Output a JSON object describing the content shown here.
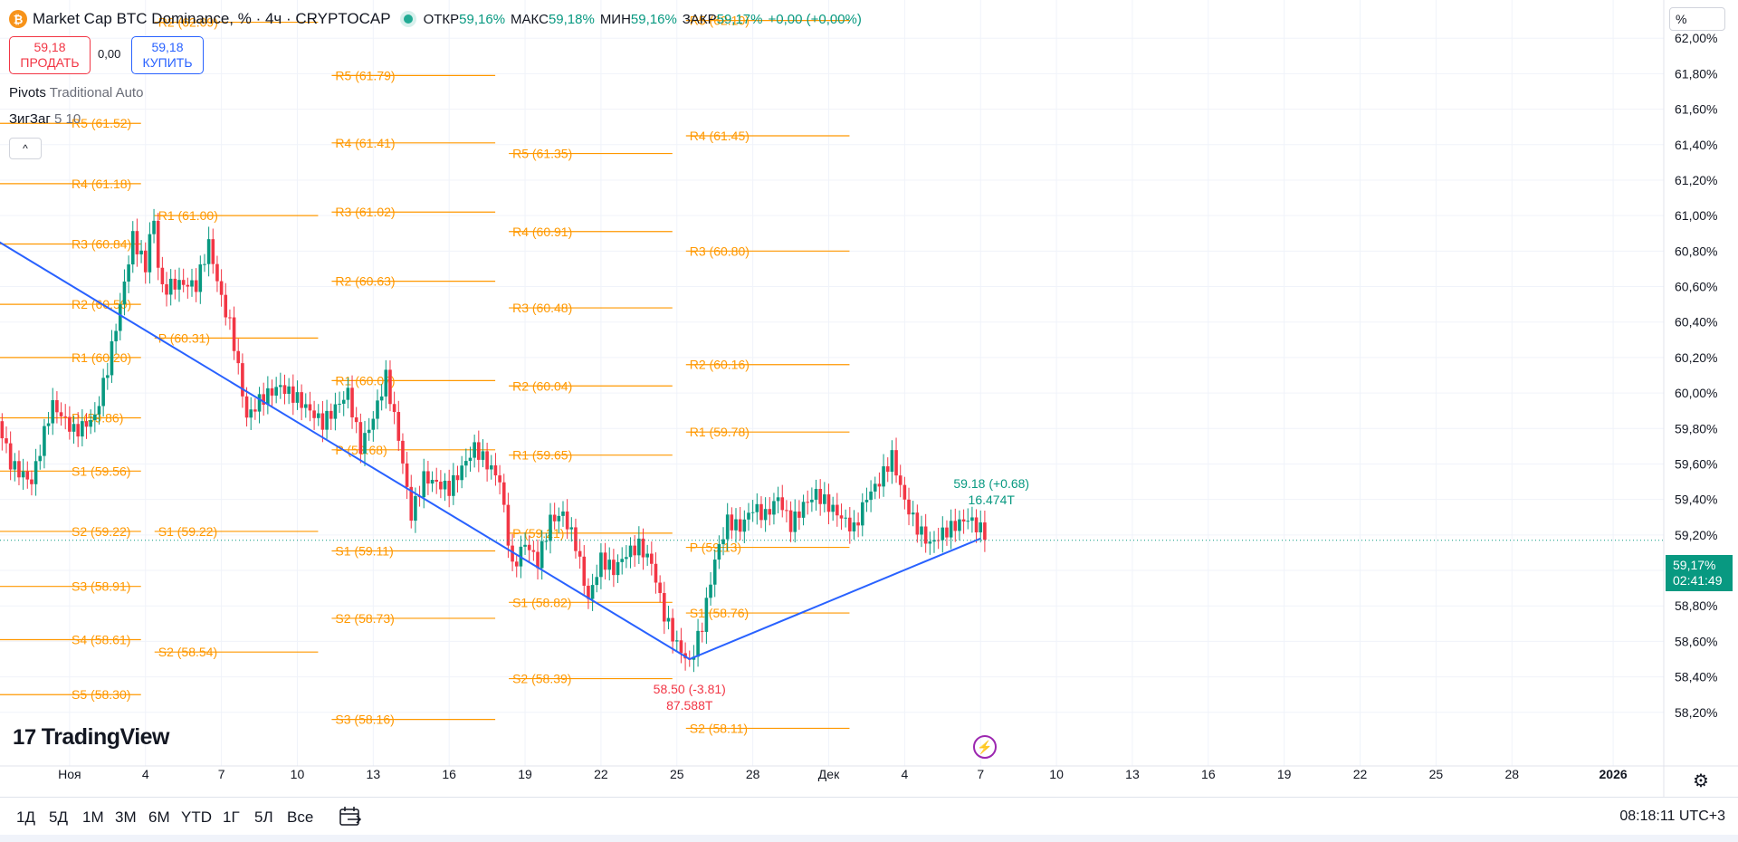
{
  "header": {
    "coin_glyph": "₿",
    "title": "Market Cap BTC Dominance, % · 4ч · CRYPTOCAP",
    "ohlc": [
      {
        "key": "ОТКР",
        "value": "59,16%"
      },
      {
        "key": "МАКС",
        "value": "59,18%"
      },
      {
        "key": "МИН",
        "value": "59,16%"
      },
      {
        "key": "ЗАКР",
        "value": "59,17%"
      },
      {
        "key": "",
        "value": "+0,00 (+0,00%)"
      }
    ]
  },
  "trade": {
    "sell_price": "59,18",
    "sell_label": "ПРОДАТЬ",
    "spread": "0,00",
    "buy_price": "59,18",
    "buy_label": "КУПИТЬ"
  },
  "indicators": [
    {
      "name": "Pivots",
      "params": "Traditional Auto"
    },
    {
      "name": "ЗигЗаг",
      "params": "5 10"
    }
  ],
  "collapse_glyph": "^",
  "unit_selector": "%",
  "last_price": {
    "value": "59,17%",
    "countdown": "02:41:49"
  },
  "logo_text": "TradingView",
  "bolt_glyph": "⚡",
  "gear_glyph": "⚙",
  "bottom_bar": {
    "timeframes": [
      "1Д",
      "5Д",
      "1М",
      "3М",
      "6М",
      "YTD",
      "1Г",
      "5Л",
      "Все"
    ],
    "clock": "08:18:11 UTC+3"
  },
  "colors": {
    "up": "#089981",
    "down": "#f23645",
    "pivot": "#ff9800",
    "zigzag": "#2962ff"
  },
  "chart_data": {
    "type": "candlestick",
    "title": "Market Cap BTC Dominance, % · 4ч · CRYPTOCAP",
    "unit": "%",
    "ylim": [
      58.0,
      62.2
    ],
    "y_ticks": [
      "62,00%",
      "61,80%",
      "61,60%",
      "61,40%",
      "61,20%",
      "61,00%",
      "60,80%",
      "60,60%",
      "60,40%",
      "60,20%",
      "60,00%",
      "59,80%",
      "59,60%",
      "59,40%",
      "59,20%",
      "59,00%",
      "58,80%",
      "58,60%",
      "58,40%",
      "58,20%"
    ],
    "y_tick_values": [
      62.0,
      61.8,
      61.6,
      61.4,
      61.2,
      61.0,
      60.8,
      60.6,
      60.4,
      60.2,
      60.0,
      59.8,
      59.6,
      59.4,
      59.2,
      59.0,
      58.8,
      58.6,
      58.4,
      58.2
    ],
    "x_ticks": [
      "Ноя",
      "4",
      "7",
      "10",
      "13",
      "16",
      "19",
      "22",
      "25",
      "28",
      "Дек",
      "4",
      "7",
      "10",
      "13",
      "16",
      "19",
      "22",
      "25",
      "28",
      "2026"
    ],
    "x_tick_days": [
      1,
      4,
      7,
      10,
      13,
      16,
      19,
      22,
      25,
      28,
      31,
      34,
      37,
      40,
      43,
      46,
      49,
      52,
      55,
      58,
      62
    ],
    "x_min_day": -1.75,
    "x_max_day": 64,
    "pivot_periods": [
      {
        "from": -3,
        "to": 4,
        "levels": [
          {
            "label": "R5 (61.52)",
            "value": 61.52
          },
          {
            "label": "R4 (61.18)",
            "value": 61.18
          },
          {
            "label": "R3 (60.84)",
            "value": 60.84
          },
          {
            "label": "R2 (60.50)",
            "value": 60.5
          },
          {
            "label": "R1 (60.20)",
            "value": 60.2
          },
          {
            "label": "P (59.86)",
            "value": 59.86
          },
          {
            "label": "S1 (59.56)",
            "value": 59.56
          },
          {
            "label": "S2 (59.22)",
            "value": 59.22
          },
          {
            "label": "S3 (58.91)",
            "value": 58.91
          },
          {
            "label": "S4 (58.61)",
            "value": 58.61
          },
          {
            "label": "S5 (58.30)",
            "value": 58.3
          }
        ]
      },
      {
        "from": 4,
        "to": 11,
        "levels": [
          {
            "label": "R2 (62.09)",
            "value": 62.09
          },
          {
            "label": "R1 (61.00)",
            "value": 61.0
          },
          {
            "label": "P (60.31)",
            "value": 60.31
          },
          {
            "label": "S1 (59.22)",
            "value": 59.22
          },
          {
            "label": "S2 (58.54)",
            "value": 58.54
          }
        ]
      },
      {
        "from": 11,
        "to": 18,
        "levels": [
          {
            "label": "R5 (61.79)",
            "value": 61.79
          },
          {
            "label": "R4 (61.41)",
            "value": 61.41
          },
          {
            "label": "R3 (61.02)",
            "value": 61.02
          },
          {
            "label": "R2 (60.63)",
            "value": 60.63
          },
          {
            "label": "R1 (60.07)",
            "value": 60.07
          },
          {
            "label": "P (59.68)",
            "value": 59.68
          },
          {
            "label": "S1 (59.11)",
            "value": 59.11
          },
          {
            "label": "S2 (58.73)",
            "value": 58.73
          },
          {
            "label": "S3 (58.16)",
            "value": 58.16
          }
        ]
      },
      {
        "from": 18,
        "to": 25,
        "levels": [
          {
            "label": "R5 (61.35)",
            "value": 61.35
          },
          {
            "label": "R4 (60.91)",
            "value": 60.91
          },
          {
            "label": "R3 (60.48)",
            "value": 60.48
          },
          {
            "label": "R2 (60.04)",
            "value": 60.04
          },
          {
            "label": "R1 (59.65)",
            "value": 59.65
          },
          {
            "label": "P (59.21)",
            "value": 59.21
          },
          {
            "label": "S1 (58.82)",
            "value": 58.82
          },
          {
            "label": "S2 (58.39)",
            "value": 58.39
          }
        ]
      },
      {
        "from": 25,
        "to": 32,
        "levels": [
          {
            "label": "R5 (62.10)",
            "value": 62.1
          },
          {
            "label": "R4 (61.45)",
            "value": 61.45
          },
          {
            "label": "R3 (60.80)",
            "value": 60.8
          },
          {
            "label": "R2 (60.16)",
            "value": 60.16
          },
          {
            "label": "R1 (59.78)",
            "value": 59.78
          },
          {
            "label": "P (59.13)",
            "value": 59.13
          },
          {
            "label": "S1 (58.76)",
            "value": 58.76
          },
          {
            "label": "S2 (58.11)",
            "value": 58.11
          }
        ]
      }
    ],
    "price_path": [
      [
        -2,
        59.86
      ],
      [
        -1.3,
        59.55
      ],
      [
        -0.5,
        59.48
      ],
      [
        0.3,
        59.95
      ],
      [
        1.2,
        59.82
      ],
      [
        2.0,
        59.92
      ],
      [
        2.5,
        60.2
      ],
      [
        3.0,
        60.55
      ],
      [
        3.5,
        60.93
      ],
      [
        4.0,
        60.75
      ],
      [
        4.3,
        61.05
      ],
      [
        4.6,
        60.6
      ],
      [
        5.2,
        60.62
      ],
      [
        6.0,
        60.58
      ],
      [
        6.5,
        60.8
      ],
      [
        7.0,
        60.48
      ],
      [
        7.4,
        60.3
      ],
      [
        8.0,
        59.8
      ],
      [
        8.5,
        59.9
      ],
      [
        9.3,
        60.0
      ],
      [
        10.0,
        59.95
      ],
      [
        11.0,
        59.85
      ],
      [
        12.0,
        60.05
      ],
      [
        12.5,
        59.75
      ],
      [
        13.0,
        59.92
      ],
      [
        13.5,
        60.15
      ],
      [
        14.0,
        59.8
      ],
      [
        14.5,
        59.35
      ],
      [
        15.0,
        59.55
      ],
      [
        16.0,
        59.45
      ],
      [
        17.0,
        59.65
      ],
      [
        17.5,
        59.55
      ],
      [
        18.0,
        59.45
      ],
      [
        18.5,
        58.95
      ],
      [
        19.0,
        59.1
      ],
      [
        19.5,
        59.0
      ],
      [
        20.0,
        59.25
      ],
      [
        20.5,
        59.3
      ],
      [
        21.0,
        59.15
      ],
      [
        21.5,
        58.85
      ],
      [
        22.0,
        59.1
      ],
      [
        22.5,
        59.05
      ],
      [
        23.0,
        59.15
      ],
      [
        23.5,
        59.2
      ],
      [
        24.0,
        59.1
      ],
      [
        24.5,
        58.8
      ],
      [
        25.0,
        58.62
      ],
      [
        25.5,
        58.5
      ],
      [
        26.0,
        58.7
      ],
      [
        26.5,
        59.05
      ],
      [
        27.0,
        59.25
      ],
      [
        27.5,
        59.2
      ],
      [
        28.0,
        59.3
      ],
      [
        28.5,
        59.25
      ],
      [
        29.0,
        59.35
      ],
      [
        29.5,
        59.2
      ],
      [
        30.0,
        59.32
      ],
      [
        30.5,
        59.4
      ],
      [
        31.0,
        59.35
      ],
      [
        31.5,
        59.3
      ],
      [
        32.0,
        59.25
      ],
      [
        32.5,
        59.45
      ],
      [
        33.0,
        59.55
      ],
      [
        33.5,
        59.7
      ],
      [
        34.0,
        59.45
      ],
      [
        34.5,
        59.3
      ],
      [
        35.0,
        59.2
      ],
      [
        35.5,
        59.25
      ],
      [
        36.0,
        59.28
      ],
      [
        36.5,
        59.3
      ],
      [
        37.0,
        59.22
      ],
      [
        37.3,
        59.17
      ]
    ],
    "zigzag": [
      [
        -2,
        60.87
      ],
      [
        25.5,
        58.5
      ],
      [
        37.0,
        59.18
      ]
    ],
    "annotations": [
      {
        "text": "58.50 (-3.81)",
        "sub": "87.588T",
        "day": 25.5,
        "value": 58.5,
        "color": "#f23645"
      },
      {
        "text": "59.18 (+0.68)",
        "sub": "16.474T",
        "day": 37.0,
        "value": 59.18,
        "color": "#089981"
      }
    ],
    "last_close": 59.17
  }
}
